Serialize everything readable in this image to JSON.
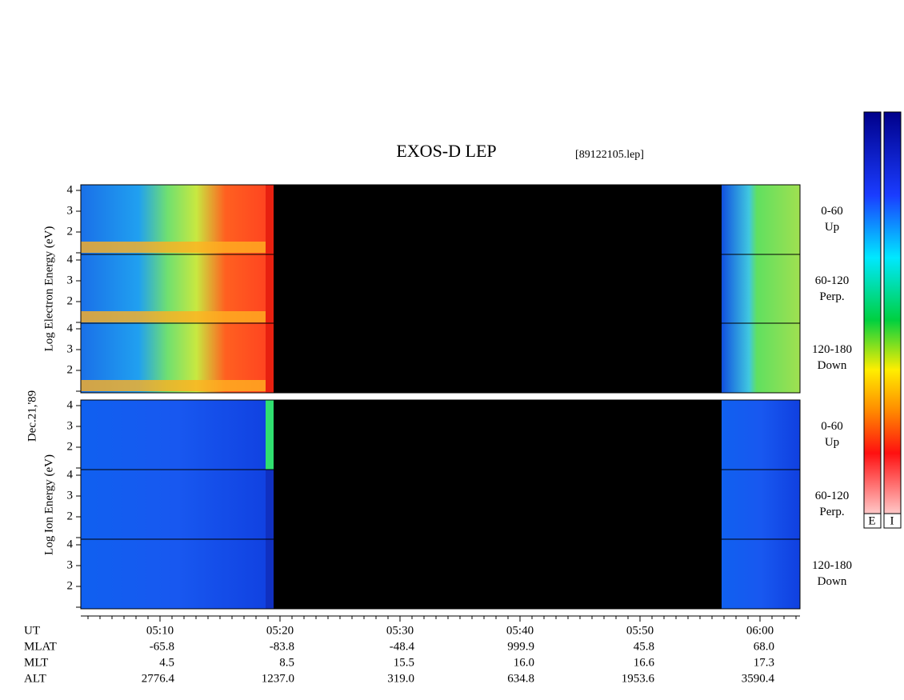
{
  "header": {
    "title": "EXOS-D LEP",
    "file": "[89122105.lep]"
  },
  "left_labels": {
    "electron": "Log Electron Energy (eV)",
    "date": "Dec.21,'89",
    "ion": "Log Ion Energy (eV)"
  },
  "y_tick_labels": [
    "2",
    "3",
    "4"
  ],
  "panels": [
    {
      "angle": "0-60",
      "direction": "Up"
    },
    {
      "angle": "60-120",
      "direction": "Perp."
    },
    {
      "angle": "120-180",
      "direction": "Down"
    },
    {
      "angle": "0-60",
      "direction": "Up"
    },
    {
      "angle": "60-120",
      "direction": "Perp."
    },
    {
      "angle": "120-180",
      "direction": "Down"
    }
  ],
  "colorbar_labels": [
    "E",
    "I"
  ],
  "time_row": {
    "label": "UT",
    "values": [
      "05:10",
      "05:20",
      "05:30",
      "05:40",
      "05:50",
      "06:00"
    ]
  },
  "ephemeris": [
    {
      "label": "MLAT",
      "values": [
        "-65.8",
        "-83.8",
        "-48.4",
        "999.9",
        "45.8",
        "68.0"
      ]
    },
    {
      "label": "MLT",
      "values": [
        "4.5",
        "8.5",
        "15.5",
        "16.0",
        "16.6",
        "17.3"
      ]
    },
    {
      "label": "ALT",
      "values": [
        "2776.4",
        "1237.0",
        "319.0",
        "634.8",
        "1953.6",
        "3590.4"
      ]
    }
  ]
}
